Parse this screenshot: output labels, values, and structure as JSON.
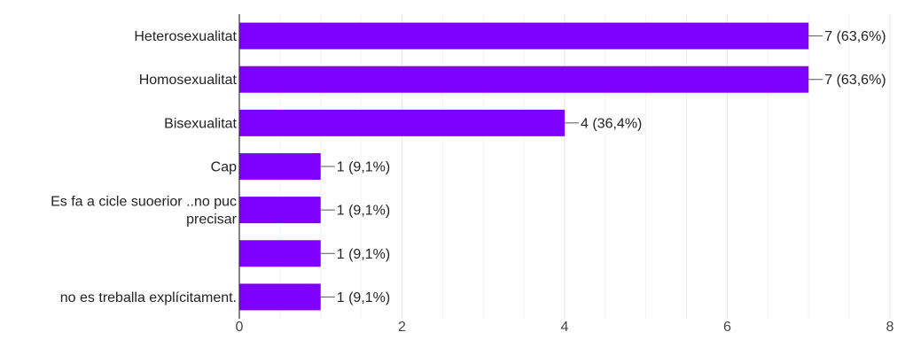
{
  "chart_data": {
    "type": "bar",
    "orientation": "horizontal",
    "categories": [
      [
        "Heterosexualitat"
      ],
      [
        "Homosexualitat"
      ],
      [
        "Bisexualitat"
      ],
      [
        "Cap"
      ],
      [
        "Es fa a cicle suoerior ..no puc",
        "precisar"
      ],
      [
        ""
      ],
      [
        "no es treballa explícitament."
      ]
    ],
    "values": [
      7,
      7,
      4,
      1,
      1,
      1,
      1
    ],
    "data_labels": [
      "7 (63,6%)",
      "7 (63,6%)",
      "4 (36,4%)",
      "1 (9,1%)",
      "1 (9,1%)",
      "1 (9,1%)",
      "1 (9,1%)"
    ],
    "xlim": [
      0,
      8
    ],
    "xticks": [
      "0",
      "2",
      "4",
      "6",
      "8"
    ],
    "grid": true,
    "bar_color": "#7f00ff",
    "title": "",
    "xlabel": "",
    "ylabel": ""
  }
}
